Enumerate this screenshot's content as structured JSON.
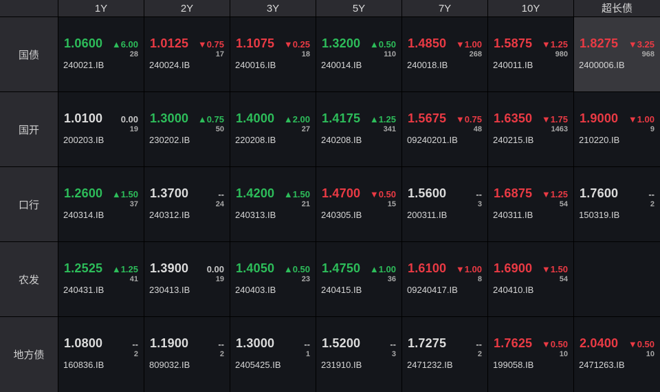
{
  "colors": {
    "up": "#2dbd5a",
    "down": "#ea3a44",
    "flat": "#dcdcdc",
    "background": "#14161b",
    "header": "#2b2b30",
    "selected": "#38383d"
  },
  "icons": {
    "up": "triangle-up-icon ▲",
    "down": "triangle-down-icon ▼"
  },
  "columns": [
    "1Y",
    "2Y",
    "3Y",
    "5Y",
    "7Y",
    "10Y",
    "超长债"
  ],
  "rows": [
    {
      "label": "国债",
      "cells": [
        {
          "price": "1.0600",
          "dir": "up",
          "change": "▲6.00",
          "count": "28",
          "code": "240021.IB"
        },
        {
          "price": "1.0125",
          "dir": "down",
          "change": "▼0.75",
          "count": "17",
          "code": "240024.IB"
        },
        {
          "price": "1.1075",
          "dir": "down",
          "change": "▼0.25",
          "count": "18",
          "code": "240016.IB"
        },
        {
          "price": "1.3200",
          "dir": "up",
          "change": "▲0.50",
          "count": "110",
          "code": "240014.IB"
        },
        {
          "price": "1.4850",
          "dir": "down",
          "change": "▼1.00",
          "count": "268",
          "code": "240018.IB"
        },
        {
          "price": "1.5875",
          "dir": "down",
          "change": "▼1.25",
          "count": "980",
          "code": "240011.IB"
        },
        {
          "price": "1.8275",
          "dir": "down",
          "change": "▼3.25",
          "count": "968",
          "code": "2400006.IB",
          "selected": true
        }
      ]
    },
    {
      "label": "国开",
      "cells": [
        {
          "price": "1.0100",
          "dir": "flat",
          "change": "0.00",
          "count": "19",
          "code": "200203.IB"
        },
        {
          "price": "1.3000",
          "dir": "up",
          "change": "▲0.75",
          "count": "50",
          "code": "230202.IB"
        },
        {
          "price": "1.4000",
          "dir": "up",
          "change": "▲2.00",
          "count": "27",
          "code": "220208.IB"
        },
        {
          "price": "1.4175",
          "dir": "up",
          "change": "▲1.25",
          "count": "341",
          "code": "240208.IB"
        },
        {
          "price": "1.5675",
          "dir": "down",
          "change": "▼0.75",
          "count": "48",
          "code": "09240201.IB"
        },
        {
          "price": "1.6350",
          "dir": "down",
          "change": "▼1.75",
          "count": "1463",
          "code": "240215.IB"
        },
        {
          "price": "1.9000",
          "dir": "down",
          "change": "▼1.00",
          "count": "9",
          "code": "210220.IB"
        }
      ]
    },
    {
      "label": "口行",
      "cells": [
        {
          "price": "1.2600",
          "dir": "up",
          "change": "▲1.50",
          "count": "37",
          "code": "240314.IB"
        },
        {
          "price": "1.3700",
          "dir": "flat",
          "change": "--",
          "count": "24",
          "code": "240312.IB"
        },
        {
          "price": "1.4200",
          "dir": "up",
          "change": "▲1.50",
          "count": "21",
          "code": "240313.IB"
        },
        {
          "price": "1.4700",
          "dir": "down",
          "change": "▼0.50",
          "count": "15",
          "code": "240305.IB"
        },
        {
          "price": "1.5600",
          "dir": "flat",
          "change": "--",
          "count": "3",
          "code": "200311.IB"
        },
        {
          "price": "1.6875",
          "dir": "down",
          "change": "▼1.25",
          "count": "54",
          "code": "240311.IB"
        },
        {
          "price": "1.7600",
          "dir": "flat",
          "change": "--",
          "count": "2",
          "code": "150319.IB"
        }
      ]
    },
    {
      "label": "农发",
      "cells": [
        {
          "price": "1.2525",
          "dir": "up",
          "change": "▲1.25",
          "count": "41",
          "code": "240431.IB"
        },
        {
          "price": "1.3900",
          "dir": "flat",
          "change": "0.00",
          "count": "19",
          "code": "230413.IB"
        },
        {
          "price": "1.4050",
          "dir": "up",
          "change": "▲0.50",
          "count": "23",
          "code": "240403.IB"
        },
        {
          "price": "1.4750",
          "dir": "up",
          "change": "▲1.00",
          "count": "36",
          "code": "240415.IB"
        },
        {
          "price": "1.6100",
          "dir": "down",
          "change": "▼1.00",
          "count": "8",
          "code": "09240417.IB"
        },
        {
          "price": "1.6900",
          "dir": "down",
          "change": "▼1.50",
          "count": "54",
          "code": "240410.IB"
        },
        null
      ]
    },
    {
      "label": "地方债",
      "cells": [
        {
          "price": "1.0800",
          "dir": "flat",
          "change": "--",
          "count": "2",
          "code": "160836.IB"
        },
        {
          "price": "1.1900",
          "dir": "flat",
          "change": "--",
          "count": "2",
          "code": "809032.IB"
        },
        {
          "price": "1.3000",
          "dir": "flat",
          "change": "--",
          "count": "1",
          "code": "2405425.IB"
        },
        {
          "price": "1.5200",
          "dir": "flat",
          "change": "--",
          "count": "3",
          "code": "231910.IB"
        },
        {
          "price": "1.7275",
          "dir": "flat",
          "change": "--",
          "count": "2",
          "code": "2471232.IB"
        },
        {
          "price": "1.7625",
          "dir": "down",
          "change": "▼0.50",
          "count": "10",
          "code": "199058.IB"
        },
        {
          "price": "2.0400",
          "dir": "down",
          "change": "▼0.50",
          "count": "10",
          "code": "2471263.IB"
        }
      ]
    }
  ]
}
